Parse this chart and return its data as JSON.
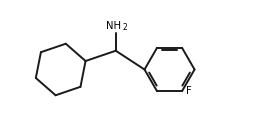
{
  "background_color": "#ffffff",
  "line_color": "#1a1a1a",
  "line_width": 1.4,
  "text_color": "#000000",
  "nh2_label": "NH",
  "nh2_sub": "2",
  "f_label": "F",
  "figsize": [
    2.54,
    1.34
  ],
  "dpi": 100,
  "xlim": [
    0.0,
    10.0
  ],
  "ylim": [
    0.0,
    5.3
  ]
}
